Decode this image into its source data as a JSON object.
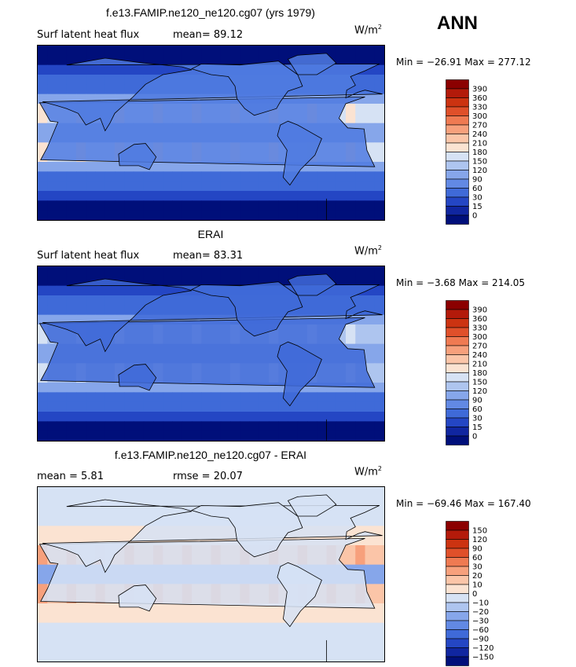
{
  "season": "ANN",
  "units_base": "W/m",
  "units_exp": "2",
  "panels": [
    {
      "title": "f.e13.FAMIP.ne120_ne120.cg07 (yrs 1979)",
      "left_label": "Surf latent heat flux",
      "right_label": "mean=  89.12",
      "minmax": "Min = −26.91 Max = 277.12",
      "map_kind": "model"
    },
    {
      "title": "ERAI",
      "left_label": "Surf latent heat flux",
      "right_label": "mean=  83.31",
      "minmax": "Min =  −3.68 Max = 214.05",
      "map_kind": "obs"
    },
    {
      "title": "f.e13.FAMIP.ne120_ne120.cg07 - ERAI",
      "left_label": "mean =   5.81",
      "right_label": "rmse =  20.07",
      "minmax": "Min = −69.46 Max = 167.40",
      "map_kind": "diff"
    }
  ],
  "colorbars": {
    "abs": {
      "labels": [
        "390",
        "360",
        "330",
        "300",
        "270",
        "240",
        "210",
        "180",
        "150",
        "120",
        "90",
        "60",
        "30",
        "15",
        "0"
      ],
      "colors": [
        "#8b0000",
        "#b31a0a",
        "#cc3311",
        "#e0502a",
        "#ef7a52",
        "#f7a07c",
        "#fbc5a8",
        "#fbe3d2",
        "#d6e2f4",
        "#aec5ef",
        "#86a6ea",
        "#6289e4",
        "#3f6ad8",
        "#2446c4",
        "#1026a0",
        "#000f7a"
      ]
    },
    "diff": {
      "labels": [
        "150",
        "120",
        "90",
        "60",
        "30",
        "20",
        "10",
        "0",
        "−10",
        "−20",
        "−30",
        "−60",
        "−90",
        "−120",
        "−150"
      ],
      "colors": [
        "#8b0000",
        "#b31a0a",
        "#cc3311",
        "#e0502a",
        "#ef7a52",
        "#f7a07c",
        "#fbc5a8",
        "#fbe3d2",
        "#d6e2f4",
        "#aec5ef",
        "#86a6ea",
        "#6289e4",
        "#3f6ad8",
        "#2446c4",
        "#1026a0",
        "#000f7a"
      ]
    }
  },
  "chart_data": [
    {
      "type": "heatmap",
      "title": "f.e13.FAMIP.ne120_ne120.cg07 (yrs 1979)",
      "variable": "Surf latent heat flux",
      "units": "W/m2",
      "season": "ANN",
      "mean": 89.12,
      "min": -26.91,
      "max": 277.12,
      "contour_levels": [
        0,
        15,
        30,
        60,
        90,
        120,
        150,
        180,
        210,
        240,
        270,
        300,
        330,
        360,
        390
      ]
    },
    {
      "type": "heatmap",
      "title": "ERAI",
      "variable": "Surf latent heat flux",
      "units": "W/m2",
      "season": "ANN",
      "mean": 83.31,
      "min": -3.68,
      "max": 214.05,
      "contour_levels": [
        0,
        15,
        30,
        60,
        90,
        120,
        150,
        180,
        210,
        240,
        270,
        300,
        330,
        360,
        390
      ]
    },
    {
      "type": "heatmap",
      "title": "f.e13.FAMIP.ne120_ne120.cg07 - ERAI",
      "units": "W/m2",
      "season": "ANN",
      "mean": 5.81,
      "rmse": 20.07,
      "min": -69.46,
      "max": 167.4,
      "contour_levels": [
        -150,
        -120,
        -90,
        -60,
        -30,
        -20,
        -10,
        0,
        10,
        20,
        30,
        60,
        90,
        120,
        150
      ]
    }
  ]
}
